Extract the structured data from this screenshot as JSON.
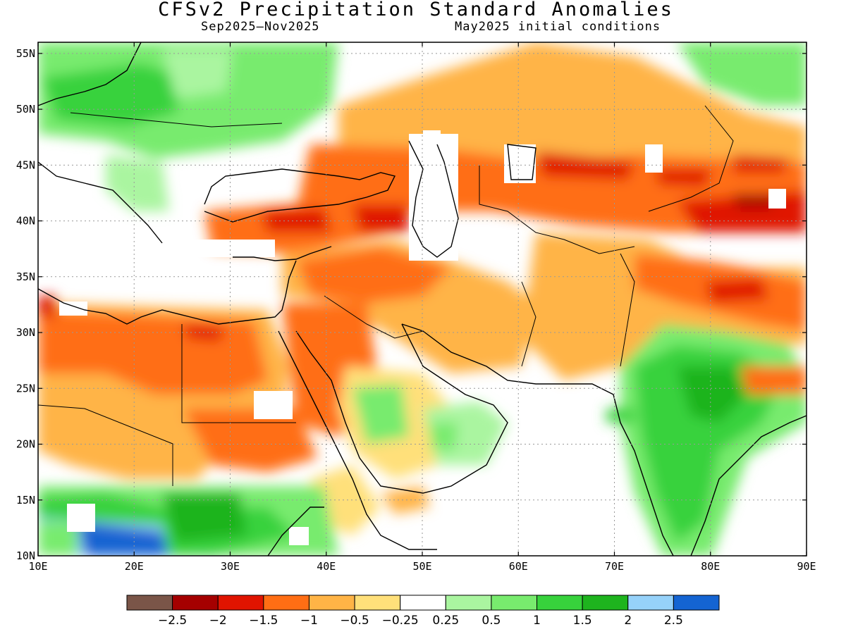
{
  "title": "CFSv2 Precipitation Standard Anomalies",
  "subtitle_left": "Sep2025–Nov2025",
  "subtitle_right": "May2025 initial conditions",
  "map": {
    "lon_range": [
      10,
      90
    ],
    "lat_range": [
      10,
      56
    ],
    "x_ticks": [
      "10E",
      "20E",
      "30E",
      "40E",
      "50E",
      "60E",
      "70E",
      "80E",
      "90E"
    ],
    "y_ticks": [
      "10N",
      "15N",
      "20N",
      "25N",
      "30N",
      "35N",
      "40N",
      "45N",
      "50N",
      "55N"
    ]
  },
  "legend": {
    "colors": [
      "#7a5548",
      "#a50000",
      "#e01400",
      "#ff6e14",
      "#ffb446",
      "#ffe07a",
      "#ffffff",
      "#aaf5a0",
      "#78eb6e",
      "#37d23c",
      "#1eb41e",
      "#96d2fa",
      "#1464d2"
    ],
    "labels": [
      "−2.5",
      "−2",
      "−1.5",
      "−1",
      "−0.5",
      "−0.25",
      "0.25",
      "0.5",
      "1",
      "1.5",
      "2",
      "2.5"
    ]
  },
  "chart_data": {
    "type": "heatmap",
    "title": "CFSv2 Precipitation Standard Anomalies",
    "subtitle": "Sep2025–Nov2025   May2025 initial conditions",
    "x_range_lon": [
      10,
      90
    ],
    "y_range_lat": [
      10,
      56
    ],
    "regions": [
      {
        "name": "europe-north-wet",
        "lon": [
          12,
          48
        ],
        "lat": [
          46,
          56
        ],
        "value": 1.0
      },
      {
        "name": "balkans-wet",
        "lon": [
          16,
          28
        ],
        "lat": [
          40,
          46
        ],
        "value": 0.5
      },
      {
        "name": "russia-ukraine-dry",
        "lon": [
          40,
          90
        ],
        "lat": [
          47,
          55
        ],
        "value": -0.5
      },
      {
        "name": "caspian-central-asia-dry",
        "lon": [
          40,
          90
        ],
        "lat": [
          38,
          47
        ],
        "value": -1.0
      },
      {
        "name": "kazakhstan-very-dry",
        "lon": [
          64,
          80
        ],
        "lat": [
          43,
          46
        ],
        "value": -1.5
      },
      {
        "name": "xinjiang-very-dry",
        "lon": [
          78,
          90
        ],
        "lat": [
          38,
          43
        ],
        "value": -1.5
      },
      {
        "name": "north-africa-dry",
        "lon": [
          10,
          38
        ],
        "lat": [
          20,
          32
        ],
        "value": -1.0
      },
      {
        "name": "middle-east-dry",
        "lon": [
          36,
          60
        ],
        "lat": [
          27,
          38
        ],
        "value": -1.0
      },
      {
        "name": "iran-afghanistan-dry",
        "lon": [
          50,
          72
        ],
        "lat": [
          26,
          38
        ],
        "value": -0.5
      },
      {
        "name": "sahel-wet",
        "lon": [
          10,
          38
        ],
        "lat": [
          10,
          18
        ],
        "value": 1.0
      },
      {
        "name": "chad-very-wet",
        "lon": [
          10,
          24
        ],
        "lat": [
          10,
          13
        ],
        "value": 2.5
      },
      {
        "name": "india-wet",
        "lon": [
          72,
          86
        ],
        "lat": [
          12,
          28
        ],
        "value": 1.5
      },
      {
        "name": "arabia-moist",
        "lon": [
          42,
          54
        ],
        "lat": [
          18,
          26
        ],
        "value": 0.5
      }
    ]
  }
}
